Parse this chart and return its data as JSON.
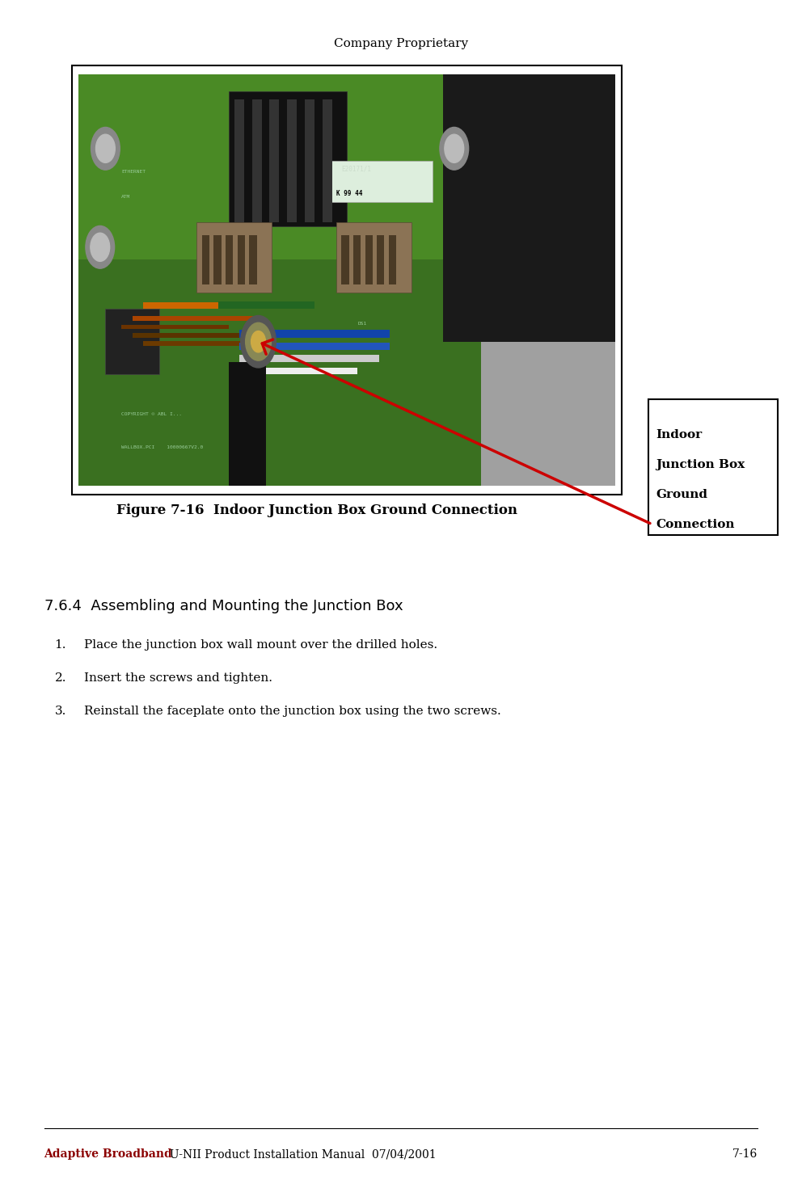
{
  "page_width": 9.92,
  "page_height": 14.65,
  "bg_color": "#ffffff",
  "header_text": "Company Proprietary",
  "header_fontsize": 11,
  "header_color": "#000000",
  "footer_brand": "Adaptive Broadband",
  "footer_brand_color": "#8B0000",
  "footer_rest": "  U-NII Product Installation Manual  07/04/2001",
  "footer_page": "7-16",
  "footer_fontsize": 10,
  "figure_caption": "Figure 7-16  Indoor Junction Box Ground Connection",
  "figure_caption_fontsize": 12,
  "callout_text": "Indoor\nJunction Box\nGround\nConnection",
  "callout_fontsize": 11,
  "section_title": "7.6.4  Assembling and Mounting the Junction Box",
  "section_title_fontsize": 13,
  "list_items": [
    "Place the junction box wall mount over the drilled holes.",
    "Insert the screws and tighten.",
    "Reinstall the faceplate onto the junction box using the two screws."
  ],
  "list_fontsize": 11,
  "list_color": "#000000",
  "image_border_color": "#000000",
  "pcb_green": "#3a7020",
  "pcb_green_light": "#4a8a25",
  "pcb_dark": "#1e1e1e",
  "pcb_gray": "#8a8a8a",
  "pcb_lightgray": "#c0c0c0",
  "wire_orange1": "#cc6600",
  "wire_orange2": "#aa4400",
  "wire_brown": "#6b3300",
  "wire_blue": "#1144aa",
  "wire_white": "#dddddd",
  "wire_green": "#226622"
}
